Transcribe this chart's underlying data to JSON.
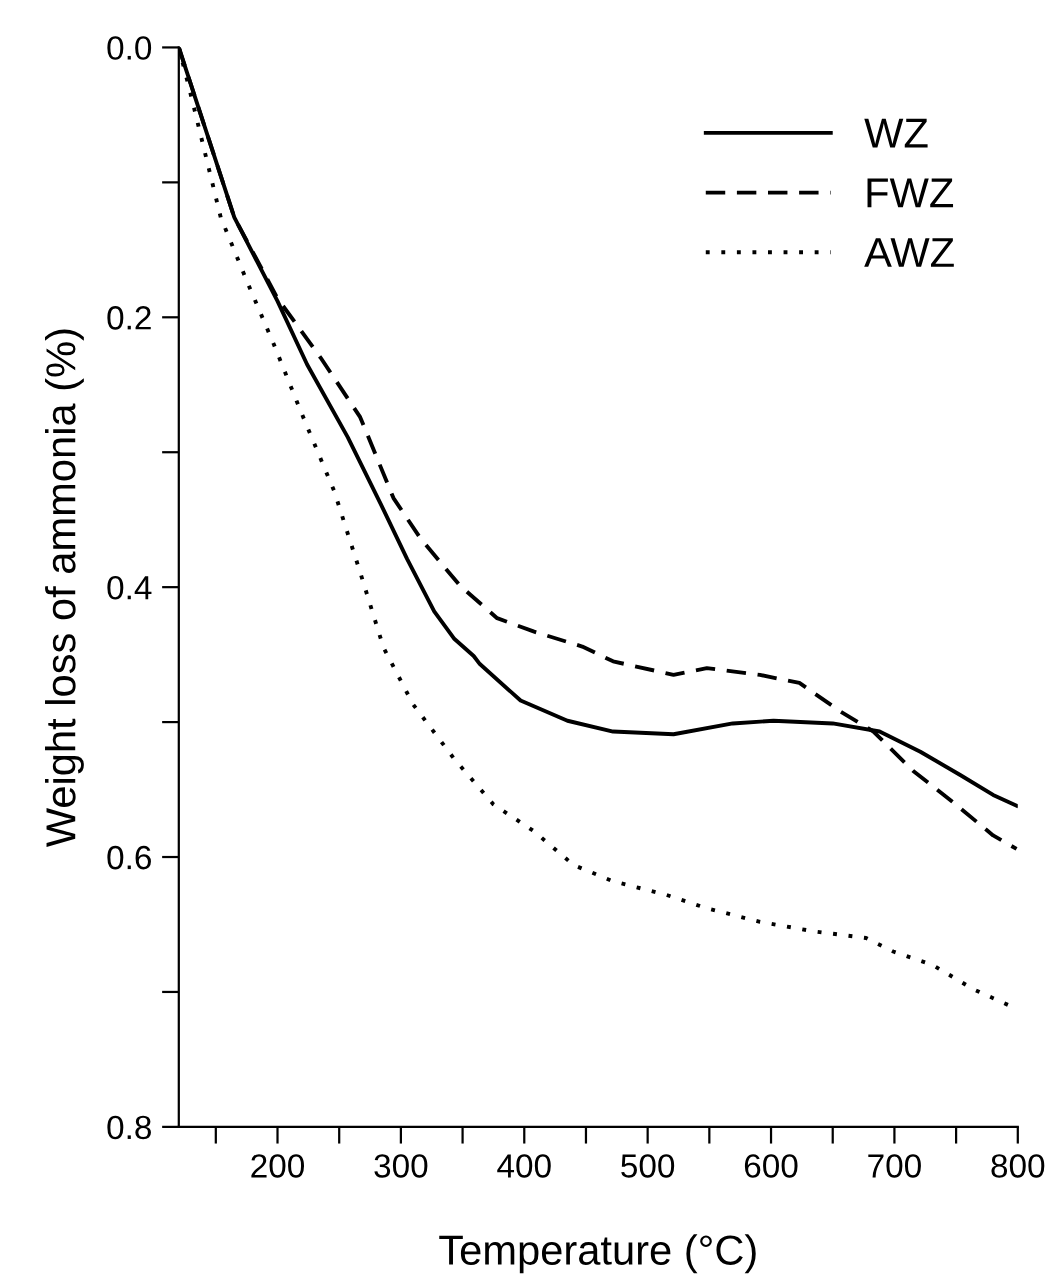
{
  "chart_data": {
    "type": "line",
    "xlabel": "Temperature (°C)",
    "ylabel": "Weight loss of ammonia (%)",
    "xlim": [
      120,
      800
    ],
    "ylim": [
      0.8,
      0.0
    ],
    "xticks": [
      {
        "value": 150,
        "label": null
      },
      200,
      {
        "value": 250,
        "label": null
      },
      300,
      {
        "value": 350,
        "label": null
      },
      400,
      {
        "value": 450,
        "label": null
      },
      500,
      {
        "value": 550,
        "label": null
      },
      600,
      {
        "value": 650,
        "label": null
      },
      700,
      {
        "value": 750,
        "label": null
      },
      800
    ],
    "yticks": [
      {
        "value": 0,
        "label": "0.0"
      },
      {
        "value": 0.1,
        "label": null
      },
      0.2,
      {
        "value": 0.3,
        "label": null
      },
      0.4,
      {
        "value": 0.5,
        "label": null
      },
      0.6,
      {
        "value": 0.7,
        "label": null
      },
      0.8
    ],
    "grid": false,
    "legend": "top right",
    "marker": "none",
    "series": [
      {
        "name": "WZ",
        "color": "#000000",
        "line_style": "solid",
        "x": [
          120,
          165,
          200,
          224,
          257,
          284,
          305,
          327,
          343,
          359,
          364,
          397,
          435,
          472,
          521,
          569,
          602,
          650,
          688,
          721,
          753,
          780,
          799
        ],
        "values": [
          0.0,
          0.126,
          0.188,
          0.235,
          0.289,
          0.339,
          0.379,
          0.418,
          0.438,
          0.451,
          0.457,
          0.484,
          0.499,
          0.507,
          0.509,
          0.501,
          0.499,
          0.501,
          0.507,
          0.522,
          0.539,
          0.554,
          0.562
        ]
      },
      {
        "name": "FWZ",
        "color": "#000000",
        "line_style": "dashed",
        "x": [
          120,
          165,
          200,
          235,
          267,
          294,
          316,
          348,
          378,
          408,
          447,
          472,
          521,
          548,
          591,
          623,
          656,
          683,
          715,
          747,
          780,
          799
        ],
        "values": [
          0.0,
          0.126,
          0.186,
          0.23,
          0.274,
          0.334,
          0.364,
          0.399,
          0.423,
          0.433,
          0.444,
          0.455,
          0.465,
          0.46,
          0.465,
          0.471,
          0.492,
          0.507,
          0.536,
          0.559,
          0.584,
          0.594
        ]
      },
      {
        "name": "AWZ",
        "color": "#000000",
        "line_style": "dotted",
        "x": [
          120,
          130,
          154,
          176,
          197,
          219,
          246,
          267,
          286,
          310,
          343,
          375,
          408,
          440,
          472,
          515,
          548,
          591,
          634,
          677,
          699,
          731,
          764,
          793
        ],
        "values": [
          0.0,
          0.036,
          0.126,
          0.175,
          0.22,
          0.27,
          0.329,
          0.389,
          0.445,
          0.487,
          0.527,
          0.561,
          0.581,
          0.606,
          0.618,
          0.628,
          0.638,
          0.648,
          0.655,
          0.66,
          0.67,
          0.68,
          0.698,
          0.71
        ]
      }
    ]
  }
}
